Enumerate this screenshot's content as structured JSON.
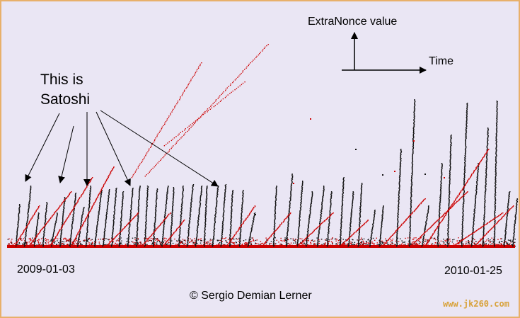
{
  "chart_data": {
    "type": "scatter",
    "description": "",
    "axis_legend": {
      "y_label": "ExtraNonce value",
      "x_label": "Time"
    },
    "x_range": [
      "2009-01-03",
      "2010-01-25"
    ],
    "start_label": "2009-01-03",
    "end_label": "2010-01-25",
    "annotation": "This is Satoshi",
    "annotation_lines": [
      "This is",
      "Satoshi"
    ],
    "series": [
      {
        "color": "#111111"
      },
      {
        "color": "#cc0000"
      }
    ]
  },
  "credit": "© Sergio Demian Lerner",
  "watermark": "www.jk260.com",
  "colors": {
    "background": "#eae6f4",
    "border": "#e8b06a",
    "black_dots": "#111111",
    "red_dots": "#cc0000"
  }
}
